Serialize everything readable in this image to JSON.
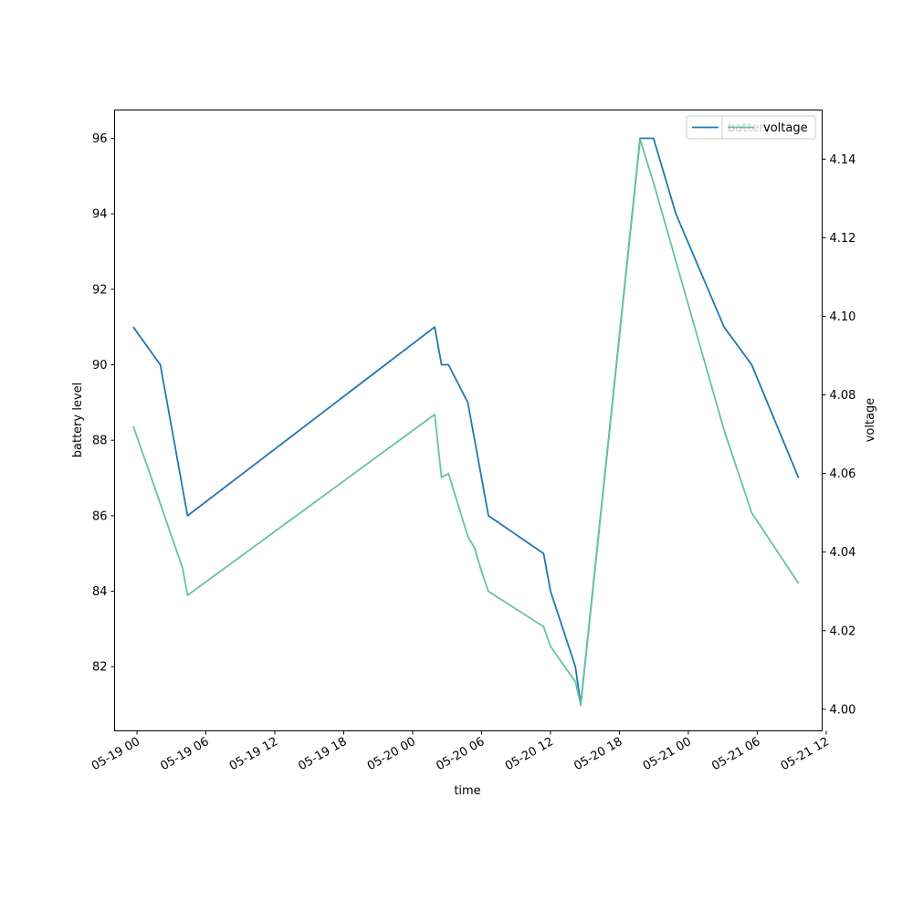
{
  "chart_data": {
    "type": "line",
    "title": "",
    "xlabel": "time",
    "ylabel": "battery level",
    "y2label": "voltage",
    "xlim": [
      "2018-05-18 22:03",
      "2018-05-21 11:39"
    ],
    "ylim": [
      80.3,
      96.75
    ],
    "y2lim": [
      3.9945,
      4.1525
    ],
    "x_ticks": [
      {
        "t": "2018-05-19 00:00",
        "label": "05-19 00"
      },
      {
        "t": "2018-05-19 06:00",
        "label": "05-19 06"
      },
      {
        "t": "2018-05-19 12:00",
        "label": "05-19 12"
      },
      {
        "t": "2018-05-19 18:00",
        "label": "05-19 18"
      },
      {
        "t": "2018-05-20 00:00",
        "label": "05-20 00"
      },
      {
        "t": "2018-05-20 06:00",
        "label": "05-20 06"
      },
      {
        "t": "2018-05-20 12:00",
        "label": "05-20 12"
      },
      {
        "t": "2018-05-20 18:00",
        "label": "05-20 18"
      },
      {
        "t": "2018-05-21 00:00",
        "label": "05-21 00"
      },
      {
        "t": "2018-05-21 06:00",
        "label": "05-21 06"
      },
      {
        "t": "2018-05-21 12:00",
        "label": "05-21 12"
      }
    ],
    "y_ticks": [
      82,
      84,
      86,
      88,
      90,
      92,
      94,
      96
    ],
    "y2_ticks": [
      4.0,
      4.02,
      4.04,
      4.06,
      4.08,
      4.1,
      4.12,
      4.14
    ],
    "grid": false,
    "legend_position": "top-right",
    "series": [
      {
        "name": "battery",
        "axis": "left",
        "color": "#1f77b4",
        "points": [
          {
            "t": "2018-05-18 23:41",
            "y": 91
          },
          {
            "t": "2018-05-19 02:02",
            "y": 90
          },
          {
            "t": "2018-05-19 04:24",
            "y": 86
          },
          {
            "t": "2018-05-20 01:55",
            "y": 91
          },
          {
            "t": "2018-05-20 02:31",
            "y": 90
          },
          {
            "t": "2018-05-20 03:07",
            "y": 90
          },
          {
            "t": "2018-05-20 04:48",
            "y": 89
          },
          {
            "t": "2018-05-20 06:36",
            "y": 86
          },
          {
            "t": "2018-05-20 11:24",
            "y": 85
          },
          {
            "t": "2018-05-20 12:00",
            "y": 84
          },
          {
            "t": "2018-05-20 14:10",
            "y": 82
          },
          {
            "t": "2018-05-20 14:38",
            "y": 81
          },
          {
            "t": "2018-05-20 19:48",
            "y": 96
          },
          {
            "t": "2018-05-20 20:58",
            "y": 96
          },
          {
            "t": "2018-05-20 22:55",
            "y": 94
          },
          {
            "t": "2018-05-21 03:07",
            "y": 91
          },
          {
            "t": "2018-05-21 05:31",
            "y": 90
          },
          {
            "t": "2018-05-21 09:36",
            "y": 87
          }
        ]
      },
      {
        "name": "voltage",
        "axis": "right",
        "color": "#66c2a5",
        "points": [
          {
            "t": "2018-05-18 23:41",
            "y": 4.072
          },
          {
            "t": "2018-05-19 01:50",
            "y": 4.054
          },
          {
            "t": "2018-05-19 03:58",
            "y": 4.036
          },
          {
            "t": "2018-05-19 04:24",
            "y": 4.029
          },
          {
            "t": "2018-05-20 01:55",
            "y": 4.075
          },
          {
            "t": "2018-05-20 02:31",
            "y": 4.059
          },
          {
            "t": "2018-05-20 03:07",
            "y": 4.06
          },
          {
            "t": "2018-05-20 04:48",
            "y": 4.044
          },
          {
            "t": "2018-05-20 05:24",
            "y": 4.041
          },
          {
            "t": "2018-05-20 06:00",
            "y": 4.035
          },
          {
            "t": "2018-05-20 06:36",
            "y": 4.03
          },
          {
            "t": "2018-05-20 11:24",
            "y": 4.021
          },
          {
            "t": "2018-05-20 12:00",
            "y": 4.016
          },
          {
            "t": "2018-05-20 14:10",
            "y": 4.007
          },
          {
            "t": "2018-05-20 14:38",
            "y": 4.001
          },
          {
            "t": "2018-05-20 19:48",
            "y": 4.145
          },
          {
            "t": "2018-05-20 20:58",
            "y": 4.134
          },
          {
            "t": "2018-05-21 03:07",
            "y": 4.071
          },
          {
            "t": "2018-05-21 05:31",
            "y": 4.05
          },
          {
            "t": "2018-05-21 09:36",
            "y": 4.032
          }
        ]
      }
    ]
  }
}
